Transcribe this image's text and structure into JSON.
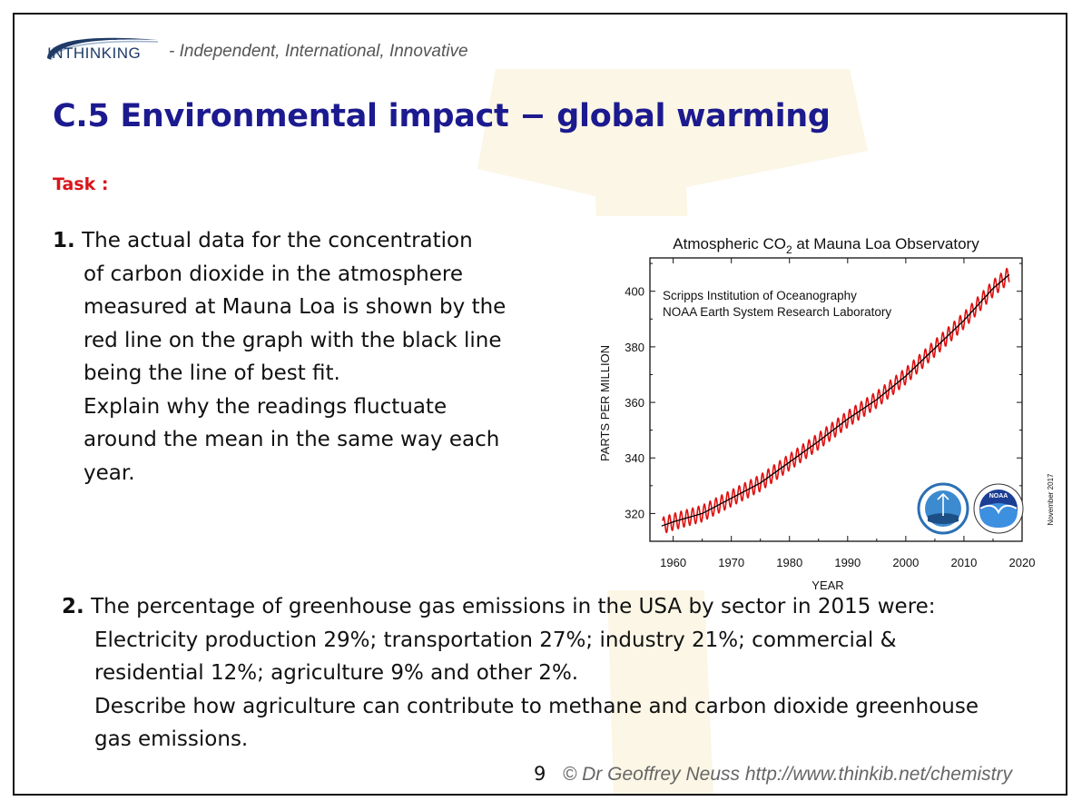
{
  "header": {
    "logo_text": "INTHINKING",
    "tagline": "- Independent, International, Innovative"
  },
  "title": "C.5 Environmental impact − global warming",
  "task_label": "Task :",
  "question1": {
    "number": "1.",
    "lines": [
      "The actual data for the concentration",
      "of carbon dioxide in the atmosphere",
      "measured at Mauna Loa is shown by the",
      "red line on the graph with the black line",
      "being the line of best fit.",
      "Explain why the readings fluctuate",
      "around the mean in the same way each",
      "year."
    ]
  },
  "question2": {
    "number": "2.",
    "lines": [
      "The percentage of greenhouse gas emissions in the USA by sector in 2015 were:",
      "Electricity production 29%;  transportation 27%; industry 21%; commercial &",
      "residential 12%; agriculture 9% and other 2%.",
      "Describe how agriculture can contribute to methane and carbon dioxide greenhouse",
      "gas emissions."
    ]
  },
  "chart_data": {
    "type": "line",
    "title": "Atmospheric CO",
    "title_sub": "2",
    "title_rest": " at Mauna Loa Observatory",
    "subtitle_lines": [
      "Scripps Institution of Oceanography",
      "NOAA Earth System Research Laboratory"
    ],
    "xlabel": "YEAR",
    "ylabel": "PARTS PER MILLION",
    "xlim": [
      1956,
      2020
    ],
    "ylim": [
      310,
      412
    ],
    "xticks": [
      1960,
      1970,
      1980,
      1990,
      2000,
      2010,
      2020
    ],
    "yticks": [
      320,
      340,
      360,
      380,
      400
    ],
    "side_note": "November 2017",
    "logos": [
      "SIO seal",
      "NOAA"
    ],
    "series": [
      {
        "name": "Monthly mean CO2 (measured)",
        "color": "#e01010",
        "seasonal_amplitude_ppm": 3,
        "description": "red line with annual fluctuation around trend"
      },
      {
        "name": "Line of best fit (trend)",
        "color": "#000000",
        "x": [
          1958,
          1960,
          1965,
          1970,
          1975,
          1980,
          1985,
          1990,
          1995,
          2000,
          2005,
          2010,
          2015,
          2017.8
        ],
        "values": [
          315.5,
          317,
          320,
          325.5,
          331,
          338.5,
          346,
          354,
          361,
          369.5,
          379.5,
          389.5,
          401,
          406
        ]
      }
    ]
  },
  "footer": {
    "page_number": "9",
    "copyright": "© Dr Geoffrey Neuss http://www.thinkib.net/chemistry"
  },
  "colors": {
    "title": "#1c1a8f",
    "task": "#d9151b",
    "measured": "#e01010",
    "trend": "#000000"
  }
}
